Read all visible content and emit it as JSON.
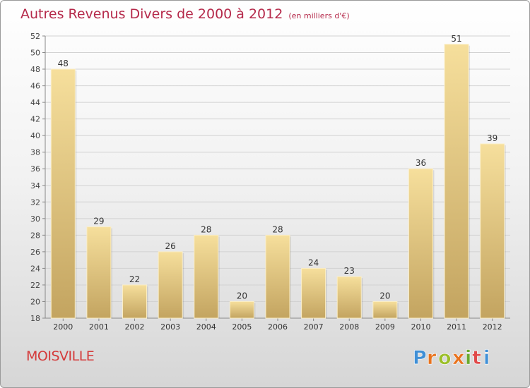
{
  "title": "Autres Revenus Divers de 2000 à 2012",
  "title_unit": "(en milliers d'€)",
  "place": "MOISVILLE",
  "logo": {
    "text": "Proxiti",
    "colors": [
      "#3f8fd6",
      "#e8731e",
      "#9bbf2a",
      "#e8731e",
      "#6aaa2e",
      "#e04a4a",
      "#3f8fd6"
    ]
  },
  "colors": {
    "bar_light": "#f6df9c",
    "bar_dark": "#c3a460",
    "title": "#b5294a",
    "place": "#d43a3a",
    "grid": "#d2d2d2"
  },
  "chart_data": {
    "type": "bar",
    "title": "Autres Revenus Divers de 2000 à 2012",
    "categories": [
      "2000",
      "2001",
      "2002",
      "2003",
      "2004",
      "2005",
      "2006",
      "2007",
      "2008",
      "2009",
      "2010",
      "2011",
      "2012"
    ],
    "values": [
      48,
      29,
      22,
      26,
      28,
      20,
      28,
      24,
      23,
      20,
      36,
      51,
      39
    ],
    "ylim": [
      18,
      52
    ],
    "yticks": [
      18,
      20,
      22,
      24,
      26,
      28,
      30,
      32,
      34,
      36,
      38,
      40,
      42,
      44,
      46,
      48,
      50,
      52
    ],
    "grid": true,
    "data_labels": true
  }
}
